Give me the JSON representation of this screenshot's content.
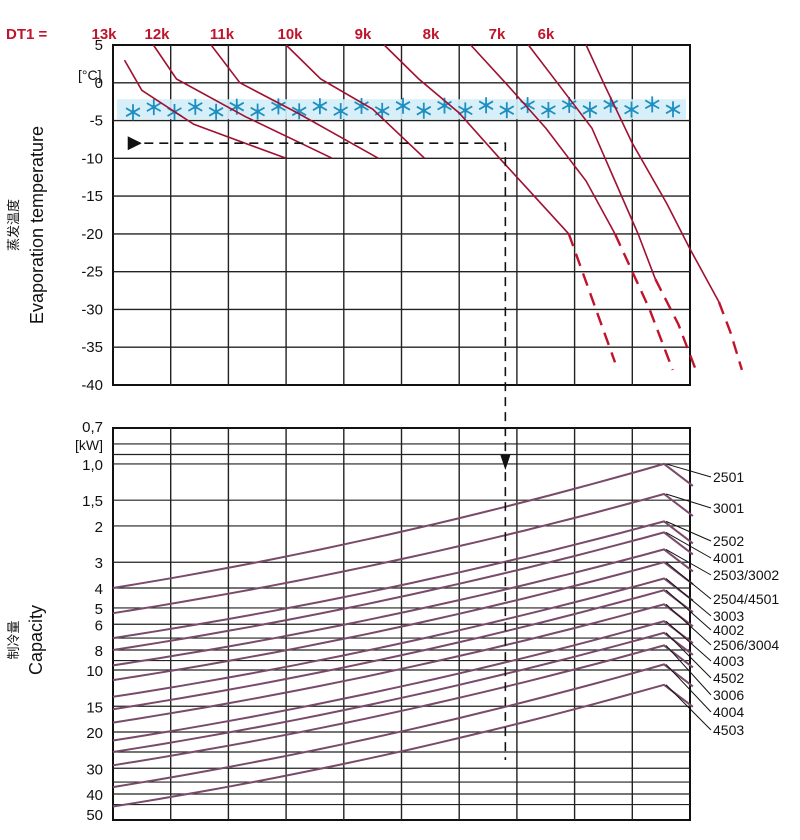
{
  "chart_data": [
    {
      "type": "line",
      "panel": "evaporation",
      "dt_prefix": "DT1 =",
      "dt_labels": [
        "13k",
        "12k",
        "11k",
        "10k",
        "9k",
        "8k",
        "7k",
        "6k"
      ],
      "unit": "[°C]",
      "ylabel": "Evaporation temperature",
      "ylabel_cn": "蒸发温度",
      "yticks": [
        "5",
        "0",
        "-5",
        "-10",
        "-15",
        "-20",
        "-25",
        "-30",
        "-35",
        "-40"
      ],
      "ylim": [
        -40,
        5
      ],
      "frost_band_temperature": -3.5,
      "color": "#a01030",
      "series": [
        {
          "dt": "13k",
          "x": [
            0.2,
            0.5,
            1.4,
            3.0
          ],
          "y": [
            3.0,
            -1.0,
            -5.5,
            -10.0
          ]
        },
        {
          "dt": "12k",
          "x": [
            0.7,
            1.1,
            2.3,
            3.8
          ],
          "y": [
            5.0,
            0.5,
            -4.5,
            -10.0
          ]
        },
        {
          "dt": "11k",
          "x": [
            1.7,
            2.2,
            3.2,
            4.6
          ],
          "y": [
            5.0,
            0.0,
            -4.0,
            -10.0
          ]
        },
        {
          "dt": "10k",
          "x": [
            3.0,
            3.6,
            4.5,
            5.4
          ],
          "y": [
            5.0,
            0.5,
            -3.5,
            -10.0
          ]
        },
        {
          "dt": "9k",
          "x": [
            4.7,
            5.3,
            6.0,
            6.7,
            7.3,
            7.9
          ],
          "y": [
            5.0,
            0.5,
            -4.0,
            -10.0,
            -15.0,
            -20.0
          ],
          "dashed": {
            "x": [
              7.9,
              8.7
            ],
            "y": [
              -20.0,
              -37.0
            ]
          }
        },
        {
          "dt": "8k",
          "x": [
            6.2,
            6.8,
            7.5,
            8.2,
            8.7
          ],
          "y": [
            5.0,
            0.0,
            -6.0,
            -13.0,
            -20.0
          ],
          "dashed": {
            "x": [
              8.7,
              9.3,
              9.7
            ],
            "y": [
              -20.0,
              -30.0,
              -38.0
            ]
          }
        },
        {
          "dt": "7k",
          "x": [
            7.2,
            7.7,
            8.3,
            8.7,
            9.1,
            9.4
          ],
          "y": [
            5.0,
            0.0,
            -6.0,
            -13.0,
            -20.0,
            -26.0
          ],
          "dashed": {
            "x": [
              9.4,
              9.8,
              10.1
            ],
            "y": [
              -26.0,
              -32.0,
              -38.0
            ]
          }
        },
        {
          "dt": "6k",
          "x": [
            8.2,
            8.5,
            9.0,
            9.6,
            10.0,
            10.5
          ],
          "y": [
            5.0,
            0.0,
            -8.0,
            -16.0,
            -22.0,
            -29.0
          ],
          "dashed": {
            "x": [
              10.5,
              10.7,
              10.9
            ],
            "y": [
              -29.0,
              -33.0,
              -38.0
            ]
          }
        }
      ],
      "example_path": {
        "start_x": 0.3,
        "temperature": -8,
        "turn_x": 6.8
      }
    },
    {
      "type": "line",
      "panel": "capacity",
      "ylabel": "Capacity",
      "ylabel_cn": "制冷量",
      "unit": "[kW]",
      "yticks": [
        "0,7",
        "1,0",
        "1,5",
        "2",
        "3",
        "4",
        "5",
        "6",
        "8",
        "10",
        "15",
        "20",
        "30",
        "40",
        "50"
      ],
      "ylim": [
        0.7,
        50
      ],
      "scale": "log",
      "color": "#7a4a6a",
      "x_range": [
        0,
        10
      ],
      "series": [
        {
          "name": "2501",
          "start": 4.0,
          "end": 1.0
        },
        {
          "name": "3001",
          "start": 5.3,
          "end": 1.4
        },
        {
          "name": "2502",
          "start": 7.0,
          "end": 1.9
        },
        {
          "name": "4001",
          "start": 8.0,
          "end": 2.15
        },
        {
          "name": "2503/3002",
          "start": 9.5,
          "end": 2.6
        },
        {
          "name": "2504/4501",
          "start": 11.2,
          "end": 3.0
        },
        {
          "name": "3003",
          "start": 13.5,
          "end": 3.6
        },
        {
          "name": "4002",
          "start": 15.5,
          "end": 4.1
        },
        {
          "name": "2506/3004",
          "start": 18.0,
          "end": 4.8
        },
        {
          "name": "4003",
          "start": 22.0,
          "end": 5.8
        },
        {
          "name": "4502",
          "start": 25.0,
          "end": 6.6
        },
        {
          "name": "3006",
          "start": 29.0,
          "end": 7.6
        },
        {
          "name": "4004",
          "start": 37.0,
          "end": 9.4
        },
        {
          "name": "4503",
          "start": 46.0,
          "end": 11.8
        }
      ],
      "example_read_x": 6.8
    }
  ]
}
